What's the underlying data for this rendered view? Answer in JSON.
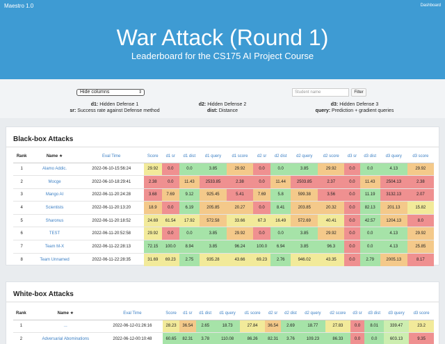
{
  "navbar": {
    "brand": "Maestro 1.0",
    "dashboard": "Dashboard"
  },
  "hero": {
    "title": "War Attack (Round 1)",
    "subtitle": "Leaderboard for the CS175 AI Project Course"
  },
  "controls": {
    "hide_columns": "Hide columns",
    "student_name_placeholder": "Student name",
    "filter": "Filter",
    "legend": {
      "d1_key": "d1:",
      "d1_text": " Hidden Defense 1",
      "d2_key": "d2:",
      "d2_text": " Hidden Defense 2",
      "d3_key": "d3:",
      "d3_text": " Hidden Defense 3",
      "sr_key": "sr:",
      "sr_text": " Success rate against Defense method",
      "dist_key": "dist:",
      "dist_text": " Distance",
      "query_key": "query:",
      "query_text": " Prediction + gradient queries"
    }
  },
  "blackbox": {
    "title": "Black-box Attacks",
    "headers": [
      "Rank",
      "Name ★",
      "Eval Time",
      "Score",
      "d1 sr",
      "d1 dist",
      "d1 query",
      "d1 score",
      "d2 sr",
      "d2 dist",
      "d2 query",
      "d2 score",
      "d3 sr",
      "d3 dist",
      "d3 query",
      "d3 score"
    ],
    "rows": [
      [
        "1",
        "Alamo Addic.",
        "2022-06-10-15:56:24",
        "29.92",
        "0.0",
        "0.0",
        "3.85",
        "29.92",
        "0.0",
        "0.0",
        "3.85",
        "29.92",
        "0.0",
        "0.0",
        "4.13",
        "29.92"
      ],
      [
        "2",
        "Mocge",
        "2022-06-10-18:29:41",
        "2.38",
        "0.0",
        "11.43",
        "2533.85",
        "2.38",
        "0.0",
        "11.44",
        "2503.85",
        "2.37",
        "0.0",
        "11.43",
        "2504.13",
        "2.38"
      ],
      [
        "3",
        "Mango AI",
        "2022-06-11-20:24:28",
        "3.68",
        "7.69",
        "9.12",
        "925.45",
        "5.41",
        "7.69",
        "5.8",
        "599.38",
        "3.56",
        "0.0",
        "11.19",
        "3132.13",
        "2.07"
      ],
      [
        "4",
        "Scientists",
        "2022-06-11-20:13:20",
        "18.9",
        "0.0",
        "6.19",
        "205.85",
        "20.27",
        "0.0",
        "8.41",
        "203.85",
        "20.32",
        "0.0",
        "82.13",
        "201.13",
        "15.82"
      ],
      [
        "5",
        "Sharonus",
        "2022-06-11-20:18:52",
        "24.69",
        "61.54",
        "17.92",
        "572.58",
        "33.66",
        "67.3",
        "16.49",
        "572.69",
        "40.41",
        "0.0",
        "42.57",
        "1204.13",
        "8.0"
      ],
      [
        "6",
        "TEST",
        "2022-06-11-20:52:58",
        "29.92",
        "0.0",
        "0.0",
        "3.85",
        "29.92",
        "0.0",
        "0.0",
        "3.85",
        "29.92",
        "0.0",
        "0.0",
        "4.13",
        "29.92"
      ],
      [
        "7",
        "Team M-X",
        "2022-06-11-22:28:13",
        "72.15",
        "100.0",
        "8.94",
        "3.85",
        "96.24",
        "100.0",
        "6.94",
        "3.85",
        "96.3",
        "0.0",
        "0.0",
        "4.13",
        "25.85"
      ],
      [
        "8",
        "Team Unnamed",
        "2022-06-11-22:28:35",
        "31.69",
        "69.23",
        "2.75",
        "935.28",
        "43.66",
        "69.23",
        "2.76",
        "946.02",
        "43.35",
        "0.0",
        "2.79",
        "2005.13",
        "8.17"
      ]
    ]
  },
  "whitebox": {
    "title": "White-box Attacks",
    "headers": [
      "Rank",
      "Name ★",
      "Eval Time",
      "Score",
      "d1 sr",
      "d1 dist",
      "d1 query",
      "d1 score",
      "d2 sr",
      "d2 dist",
      "d2 query",
      "d2 score",
      "d3 sr",
      "d3 dist",
      "d3 query",
      "d3 score"
    ],
    "rows": [
      [
        "1",
        "...",
        "2022-06-12-01:26:16",
        "28.23",
        "36.54",
        "2.65",
        "18.73",
        "27.84",
        "36.54",
        "2.69",
        "18.77",
        "27.83",
        "0.0",
        "8.01",
        "339.47",
        "23.2"
      ],
      [
        "2",
        "Adversarial Abominations",
        "2022-06-12-00:10:48",
        "60.65",
        "82.31",
        "3.78",
        "110.08",
        "86.26",
        "82.31",
        "3.76",
        "109.23",
        "86.33",
        "0.0",
        "0.0",
        "603.13",
        "9.35"
      ]
    ]
  },
  "colors": {
    "header_blue": "#3e9bd3",
    "good": "#a6e3a8",
    "warn": "#f2ea9a",
    "mid": "#f4c98a",
    "bad": "#ef9090"
  }
}
